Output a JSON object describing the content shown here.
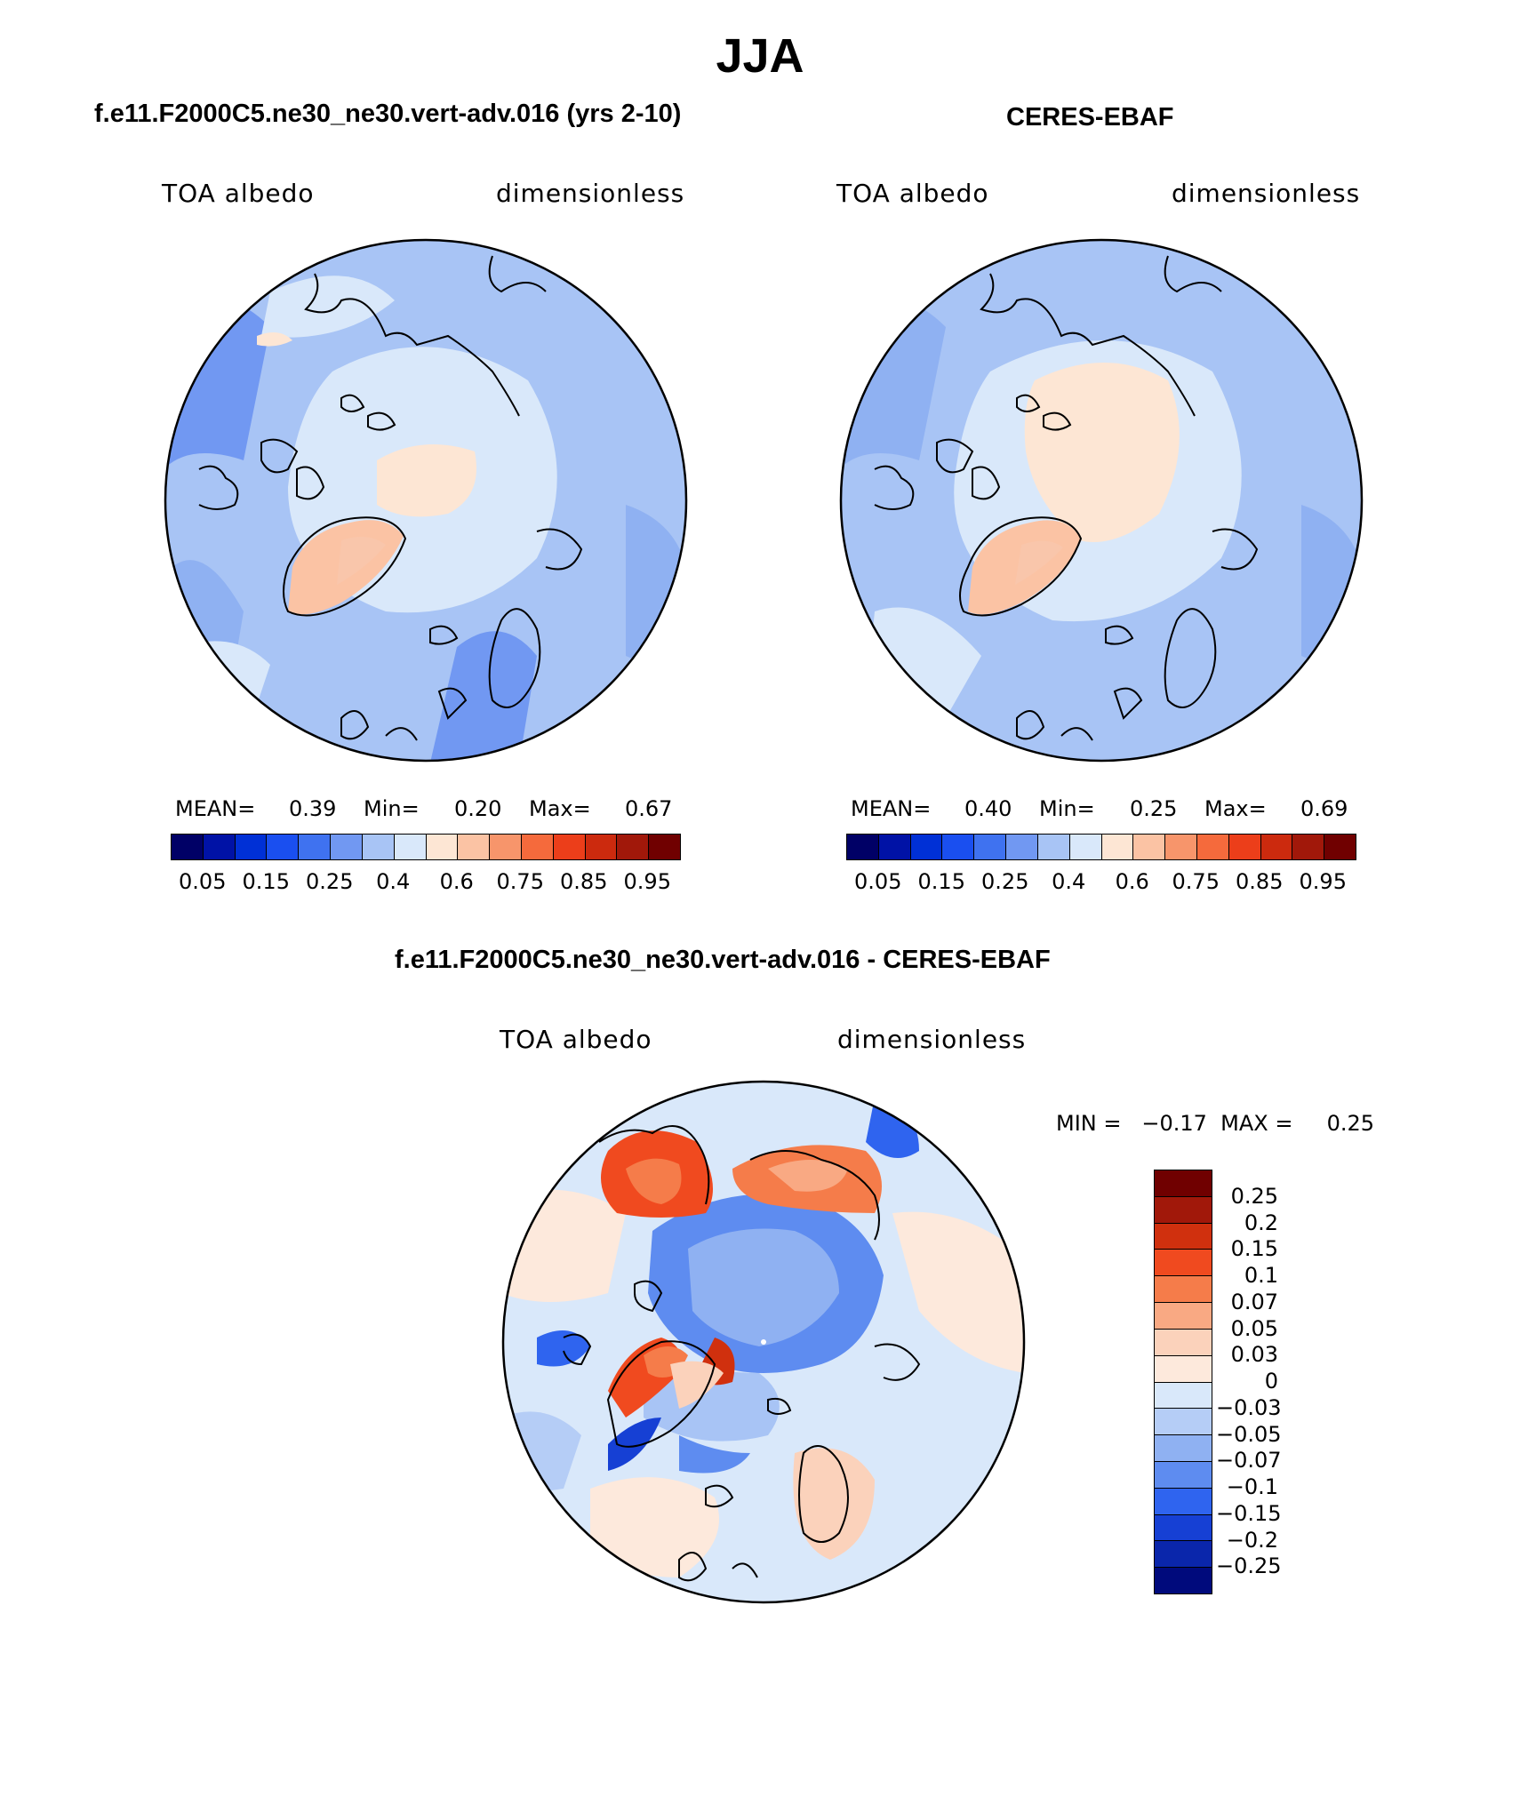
{
  "figure": {
    "title": "JJA"
  },
  "panels": {
    "model": {
      "title": "f.e11.F2000C5.ne30_ne30.vert-adv.016 (yrs 2-10)",
      "left_label": "TOA albedo",
      "right_label": "dimensionless",
      "mean_label": "MEAN=",
      "mean_value": "0.39",
      "min_label": "Min=",
      "min_value": "0.20",
      "max_label": "Max=",
      "max_value": "0.67"
    },
    "obs": {
      "title": "CERES-EBAF",
      "left_label": "TOA albedo",
      "right_label": "dimensionless",
      "mean_label": "MEAN=",
      "mean_value": "0.40",
      "min_label": "Min=",
      "min_value": "0.25",
      "max_label": "Max=",
      "max_value": "0.69"
    },
    "diff": {
      "title": "f.e11.F2000C5.ne30_ne30.vert-adv.016 - CERES-EBAF",
      "left_label": "TOA albedo",
      "right_label": "dimensionless",
      "minmax_text": "MIN =   −0.17  MAX =     0.25"
    }
  },
  "colorbar_abs": {
    "colors": [
      "#000066",
      "#0012a6",
      "#0030d6",
      "#1a4ff0",
      "#3f72f0",
      "#7198f2",
      "#a8c4f5",
      "#d9e8fa",
      "#fde6d4",
      "#fbc3a4",
      "#f7956b",
      "#f56a3c",
      "#ec3e1a",
      "#cc2a0e",
      "#a1180a",
      "#700000"
    ],
    "ticks": [
      "0.05",
      "0.15",
      "0.25",
      "0.4",
      "0.6",
      "0.75",
      "0.85",
      "0.95"
    ]
  },
  "colorbar_diff": {
    "colors": [
      "#700000",
      "#a1180a",
      "#d0300e",
      "#f04a1f",
      "#f57c4a",
      "#f9a983",
      "#fbd2bb",
      "#fde9dc",
      "#d9e8fa",
      "#b5cdf6",
      "#8fb1f2",
      "#5e8cf0",
      "#2f64ef",
      "#1640d4",
      "#0a26ab",
      "#000a7c"
    ],
    "ticks": [
      "0.25",
      "0.2",
      "0.15",
      "0.1",
      "0.07",
      "0.05",
      "0.03",
      "0",
      "−0.03",
      "−0.05",
      "−0.07",
      "−0.1",
      "−0.15",
      "−0.2",
      "−0.25"
    ]
  }
}
